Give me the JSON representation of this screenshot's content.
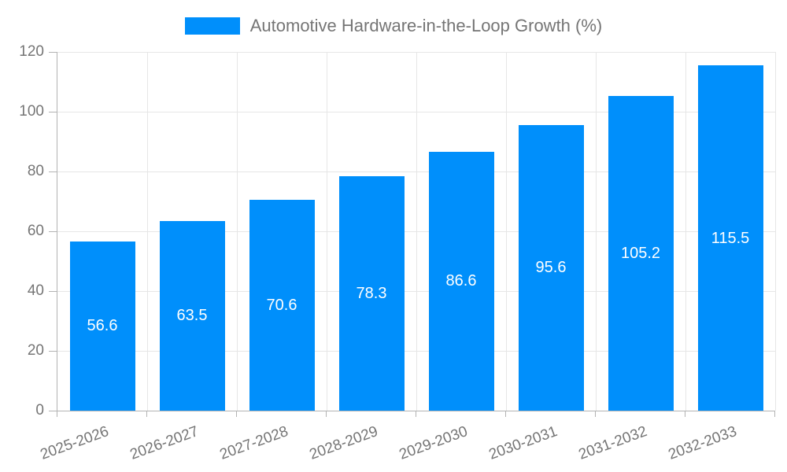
{
  "chart_data": {
    "type": "bar",
    "title": "Automotive Hardware-in-the-Loop Growth (%)",
    "legend_position": "top",
    "categories": [
      "2025-2026",
      "2026-2027",
      "2027-2028",
      "2028-2029",
      "2029-2030",
      "2030-2031",
      "2031-2032",
      "2032-2033"
    ],
    "series": [
      {
        "name": "Automotive Hardware-in-the-Loop Growth (%)",
        "values": [
          56.6,
          63.5,
          70.6,
          78.3,
          86.6,
          95.6,
          105.2,
          115.5
        ]
      }
    ],
    "value_labels": [
      "56.6",
      "63.5",
      "70.6",
      "78.3",
      "86.6",
      "95.6",
      "105.2",
      "115.5"
    ],
    "xlabel": "",
    "ylabel": "",
    "ylim": [
      0,
      120
    ],
    "yticks": [
      0,
      20,
      40,
      60,
      80,
      100,
      120
    ],
    "grid": true,
    "colors": {
      "bar": "#008FFB",
      "value_label": "#ffffff",
      "axis_text": "#757575",
      "legend_text": "#757575",
      "gridline": "#e6e6e6",
      "axis_line": "#b3b3b3",
      "background": "#ffffff"
    }
  }
}
